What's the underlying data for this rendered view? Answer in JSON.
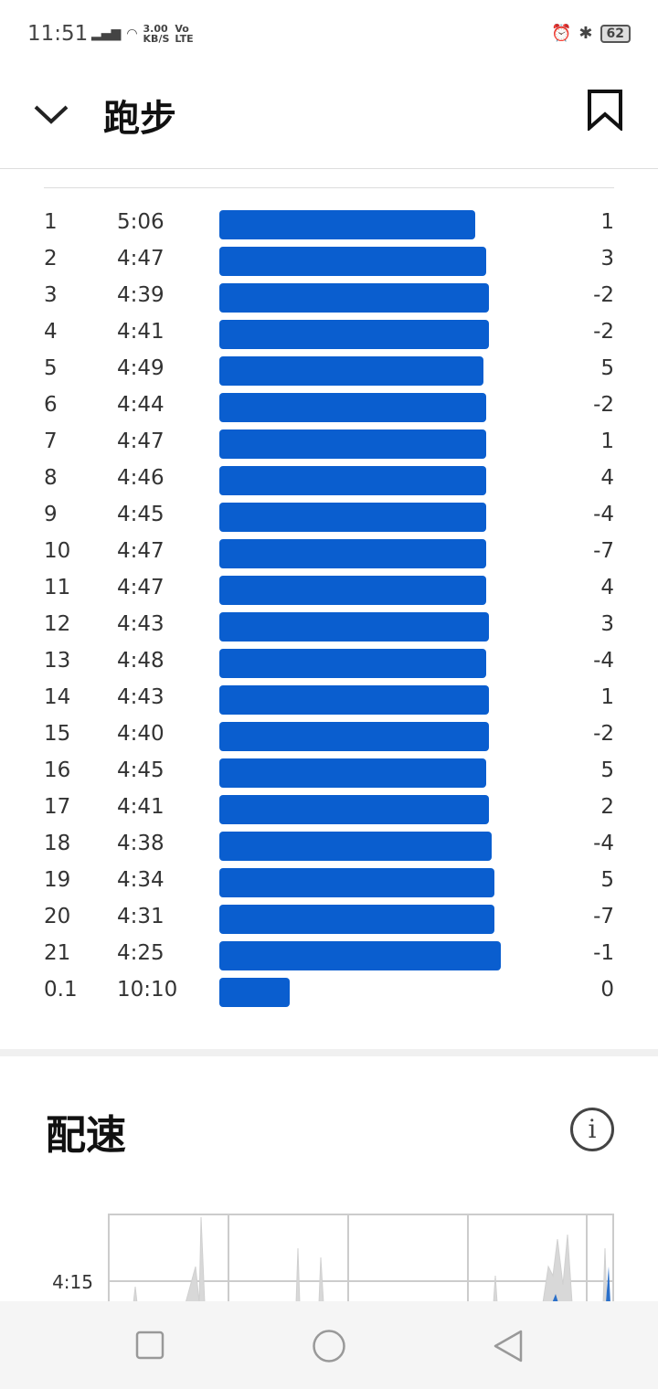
{
  "status": {
    "time": "11:51",
    "net_speed": "3.00",
    "net_unit": "KB/S",
    "volte": "Vo",
    "lte": "LTE",
    "battery": "62"
  },
  "header": {
    "title": "跑步"
  },
  "splits": [
    {
      "km": "1",
      "pace": "5:06",
      "diff": "1",
      "bar": 0.909
    },
    {
      "km": "2",
      "pace": "4:47",
      "diff": "3",
      "bar": 0.948
    },
    {
      "km": "3",
      "pace": "4:39",
      "diff": "-2",
      "bar": 0.958
    },
    {
      "km": "4",
      "pace": "4:41",
      "diff": "-2",
      "bar": 0.958
    },
    {
      "km": "5",
      "pace": "4:49",
      "diff": "5",
      "bar": 0.938
    },
    {
      "km": "6",
      "pace": "4:44",
      "diff": "-2",
      "bar": 0.948
    },
    {
      "km": "7",
      "pace": "4:47",
      "diff": "1",
      "bar": 0.948
    },
    {
      "km": "8",
      "pace": "4:46",
      "diff": "4",
      "bar": 0.948
    },
    {
      "km": "9",
      "pace": "4:45",
      "diff": "-4",
      "bar": 0.948
    },
    {
      "km": "10",
      "pace": "4:47",
      "diff": "-7",
      "bar": 0.948
    },
    {
      "km": "11",
      "pace": "4:47",
      "diff": "4",
      "bar": 0.948
    },
    {
      "km": "12",
      "pace": "4:43",
      "diff": "3",
      "bar": 0.958
    },
    {
      "km": "13",
      "pace": "4:48",
      "diff": "-4",
      "bar": 0.948
    },
    {
      "km": "14",
      "pace": "4:43",
      "diff": "1",
      "bar": 0.958
    },
    {
      "km": "15",
      "pace": "4:40",
      "diff": "-2",
      "bar": 0.958
    },
    {
      "km": "16",
      "pace": "4:45",
      "diff": "5",
      "bar": 0.948
    },
    {
      "km": "17",
      "pace": "4:41",
      "diff": "2",
      "bar": 0.958
    },
    {
      "km": "18",
      "pace": "4:38",
      "diff": "-4",
      "bar": 0.968
    },
    {
      "km": "19",
      "pace": "4:34",
      "diff": "5",
      "bar": 0.977
    },
    {
      "km": "20",
      "pace": "4:31",
      "diff": "-7",
      "bar": 0.977
    },
    {
      "km": "21",
      "pace": "4:25",
      "diff": "-1",
      "bar": 1.0
    },
    {
      "km": "0.1",
      "pace": "10:10",
      "diff": "0",
      "bar": 0.25
    }
  ],
  "pace_section": {
    "title": "配速",
    "info": "i",
    "y_tick": "4:15"
  }
}
